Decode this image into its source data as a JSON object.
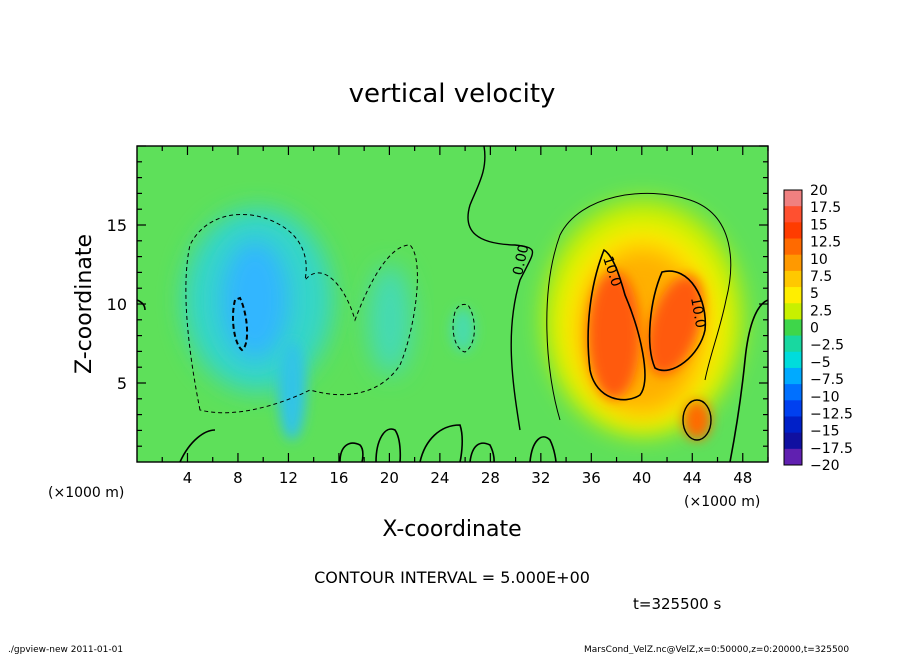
{
  "chart_data": {
    "type": "heatmap",
    "title": "vertical velocity",
    "xlabel": "X-coordinate",
    "ylabel": "Z-coordinate",
    "x_unit": "(×1000 m)",
    "x_unit_right": "(×1000 m)",
    "xlim": [
      0,
      50
    ],
    "ylim": [
      0,
      20
    ],
    "x_ticks": [
      "4",
      "8",
      "12",
      "16",
      "20",
      "24",
      "28",
      "32",
      "36",
      "40",
      "44",
      "48"
    ],
    "y_ticks": [
      "5",
      "10",
      "15"
    ],
    "contour_interval_text": "CONTOUR INTERVAL = 5.000E+00",
    "time_text": "t=325500 s",
    "contour_labels": [
      "0.00",
      "10.0",
      "10.0"
    ],
    "colorbar": {
      "labels": [
        "20",
        "17.5",
        "15",
        "12.5",
        "10",
        "7.5",
        "5",
        "2.5",
        "0",
        "−2.5",
        "−5",
        "−7.5",
        "−10",
        "−12.5",
        "−15",
        "−17.5",
        "−20"
      ],
      "colors": [
        "#f08080",
        "#ff5030",
        "#ff3c00",
        "#ff6a00",
        "#ff9900",
        "#ffc800",
        "#ffee00",
        "#c8f000",
        "#3ed64a",
        "#18d8a0",
        "#00dcdc",
        "#00aaff",
        "#0070ff",
        "#0040f0",
        "#0020c8",
        "#1010a0",
        "#6020b0"
      ]
    },
    "features": [
      {
        "kind": "updraft",
        "center_x": 40,
        "center_z": 9,
        "peak": 15
      },
      {
        "kind": "downdraft",
        "center_x": 10,
        "center_z": 10,
        "peak": -10
      }
    ]
  },
  "footer": {
    "left": "./gpview-new  2011-01-01",
    "right": "MarsCond_VelZ.nc@VelZ,x=0:50000,z=0:20000,t=325500"
  }
}
